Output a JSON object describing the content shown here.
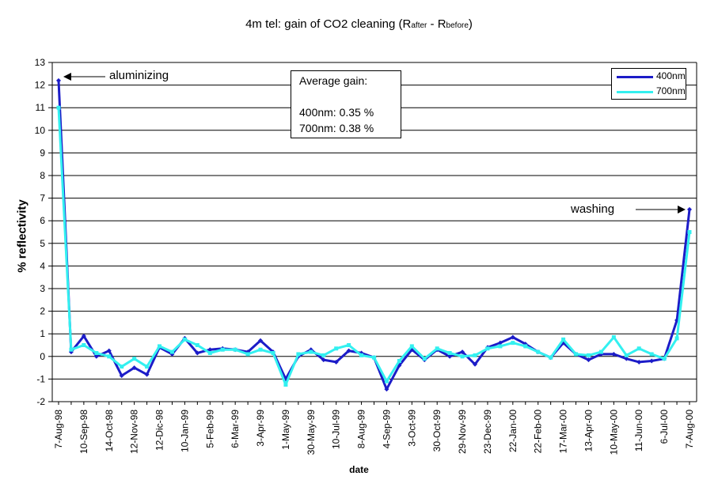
{
  "title": {
    "main": "4m tel: gain of CO2 cleaning (R",
    "sub_after": "after",
    "mid": " - R",
    "sub_before": "before",
    "end": ")"
  },
  "annotations": {
    "aluminizing": "aluminizing",
    "washing": "washing"
  },
  "average_box": {
    "heading": "Average gain:",
    "line1": "400nm: 0.35 %",
    "line2": "700nm: 0.38 %"
  },
  "colors": {
    "series_400": "#1c1cc8",
    "series_700": "#33f0f0",
    "plot_bg": "#ffffff",
    "grid": "#000000"
  },
  "chart_data": {
    "type": "line",
    "xlabel": "date",
    "ylabel": "% reflectivity",
    "ylim": [
      -2,
      13
    ],
    "yticks": [
      -2,
      -1,
      0,
      1,
      2,
      3,
      4,
      5,
      6,
      7,
      8,
      9,
      10,
      11,
      12,
      13
    ],
    "grid": "horizontal",
    "legend_position": "top-right",
    "x_tick_labels": [
      "7-Aug-98",
      "10-Sep-98",
      "14-Oct-98",
      "12-Nov-98",
      "12-Dic-98",
      "10-Jan-99",
      "5-Feb-99",
      "6-Mar-99",
      "3-Apr-99",
      "1-May-99",
      "30-May-99",
      "10-Jul-99",
      "8-Aug-99",
      "4-Sep-99",
      "3-Oct-99",
      "30-Oct-99",
      "29-Nov-99",
      "23-Dec-99",
      "22-Jan-00",
      "22-Feb-00",
      "17-Mar-00",
      "13-Apr-00",
      "10-May-00",
      "11-Jun-00",
      "6-Jul-00",
      "7-Aug-00"
    ],
    "series": [
      {
        "name": "400nm",
        "values": [
          12.2,
          0.2,
          0.9,
          0.0,
          0.25,
          -0.85,
          -0.5,
          -0.8,
          0.4,
          0.1,
          0.8,
          0.15,
          0.3,
          0.35,
          0.3,
          0.2,
          0.7,
          0.2,
          -1.0,
          0.0,
          0.3,
          -0.15,
          -0.25,
          0.25,
          0.15,
          -0.05,
          -1.45,
          -0.4,
          0.3,
          -0.15,
          0.3,
          0.0,
          0.2,
          -0.35,
          0.4,
          0.6,
          0.85,
          0.55,
          0.2,
          -0.05,
          0.6,
          0.1,
          -0.15,
          0.1,
          0.1,
          -0.1,
          -0.25,
          -0.2,
          -0.1,
          1.6,
          6.5
        ]
      },
      {
        "name": "700nm",
        "values": [
          11.0,
          0.3,
          0.5,
          0.15,
          0.0,
          -0.45,
          -0.1,
          -0.45,
          0.45,
          0.2,
          0.75,
          0.5,
          0.15,
          0.3,
          0.3,
          0.1,
          0.3,
          0.15,
          -1.25,
          0.1,
          0.2,
          0.05,
          0.35,
          0.5,
          0.05,
          -0.05,
          -1.1,
          -0.2,
          0.45,
          -0.1,
          0.35,
          0.15,
          0.0,
          0.05,
          0.35,
          0.45,
          0.6,
          0.45,
          0.2,
          -0.05,
          0.75,
          0.1,
          0.05,
          0.2,
          0.85,
          0.05,
          0.35,
          0.1,
          -0.1,
          0.8,
          5.5
        ]
      }
    ]
  }
}
